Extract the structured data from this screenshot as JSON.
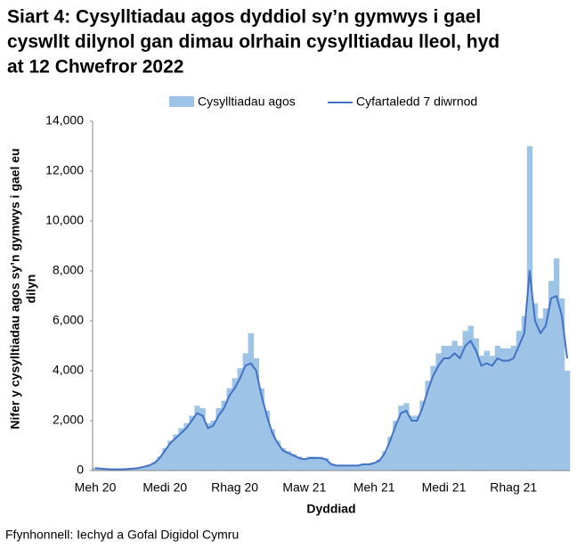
{
  "chart_data": {
    "type": "bar-line",
    "title": [
      "Siart 4: Cysylltiadau agos dyddiol sy’n gymwys i gael",
      "cyswllt dilynol gan dimau olrhain cysylltiadau lleol, hyd",
      "at 12 Chwefror 2022"
    ],
    "xlabel": "Dyddiad",
    "ylabel": [
      "Nifer y cysylltiadau agos sy’n gymwys i gael eu",
      "dilyn"
    ],
    "source": "Ffynhonnell: Iechyd a Gofal Digidol Cymru",
    "categories": [
      "Meh 20",
      null,
      null,
      null,
      null,
      null,
      null,
      null,
      null,
      null,
      null,
      null,
      null,
      "Medi 20",
      null,
      null,
      null,
      null,
      null,
      null,
      null,
      null,
      null,
      null,
      null,
      null,
      "Rhag 20",
      null,
      null,
      null,
      null,
      null,
      null,
      null,
      null,
      null,
      null,
      null,
      null,
      "Maw 21",
      null,
      null,
      null,
      null,
      null,
      null,
      null,
      null,
      null,
      null,
      null,
      null,
      "Meh 21",
      null,
      null,
      null,
      null,
      null,
      null,
      null,
      null,
      null,
      null,
      null,
      null,
      "Medi 21",
      null,
      null,
      null,
      null,
      null,
      null,
      null,
      null,
      null,
      null,
      null,
      null,
      "Rhag 21",
      null,
      null,
      null,
      null,
      null,
      null,
      null,
      null,
      null,
      null
    ],
    "series": [
      {
        "name": "Cysylltiadau agos",
        "color": "#9dc3e6",
        "values": [
          120,
          90,
          70,
          60,
          60,
          60,
          70,
          90,
          110,
          170,
          230,
          340,
          560,
          900,
          1200,
          1450,
          1700,
          1900,
          2200,
          2600,
          2500,
          1900,
          2000,
          2500,
          2800,
          3300,
          3700,
          4100,
          4700,
          5500,
          4500,
          3300,
          2400,
          1650,
          1200,
          900,
          780,
          660,
          560,
          500,
          560,
          560,
          550,
          500,
          280,
          220,
          220,
          220,
          220,
          220,
          280,
          280,
          330,
          450,
          780,
          1350,
          2000,
          2600,
          2700,
          2200,
          2200,
          2800,
          3600,
          4200,
          4700,
          5000,
          5000,
          5200,
          5000,
          5600,
          5800,
          5300,
          4600,
          4800,
          4600,
          5000,
          4900,
          4900,
          5000,
          5600,
          6200,
          13000,
          6700,
          6100,
          6500,
          7600,
          8500,
          6900,
          4000
        ]
      },
      {
        "name": "Cyfartaledd 7 diwrnod",
        "color": "#4472c4",
        "values": [
          100,
          80,
          60,
          50,
          50,
          50,
          60,
          80,
          100,
          150,
          200,
          300,
          500,
          800,
          1100,
          1300,
          1500,
          1700,
          2000,
          2300,
          2200,
          1700,
          1800,
          2200,
          2500,
          3000,
          3300,
          3700,
          4200,
          4300,
          4000,
          3000,
          2200,
          1500,
          1100,
          800,
          700,
          600,
          500,
          450,
          500,
          500,
          500,
          450,
          250,
          200,
          200,
          200,
          200,
          200,
          250,
          250,
          300,
          400,
          700,
          1200,
          1800,
          2300,
          2400,
          2000,
          2000,
          2500,
          3200,
          3800,
          4200,
          4500,
          4500,
          4700,
          4500,
          5000,
          5200,
          4800,
          4200,
          4300,
          4200,
          4500,
          4400,
          4400,
          4500,
          5000,
          5500,
          8000,
          6000,
          5500,
          5800,
          6900,
          7000,
          6200,
          4500
        ]
      }
    ],
    "ylim": [
      0,
      14000
    ],
    "yticks": [
      0,
      {
        "value": 2000,
        "label": "2,000"
      },
      {
        "value": 4000,
        "label": "4,000"
      },
      {
        "value": 6000,
        "label": "6,000"
      },
      {
        "value": 8000,
        "label": "8,000"
      },
      {
        "value": 10000,
        "label": "10,000"
      },
      {
        "value": 12000,
        "label": "12,000"
      },
      {
        "value": 14000,
        "label": "14,000"
      }
    ],
    "legend": "top"
  }
}
